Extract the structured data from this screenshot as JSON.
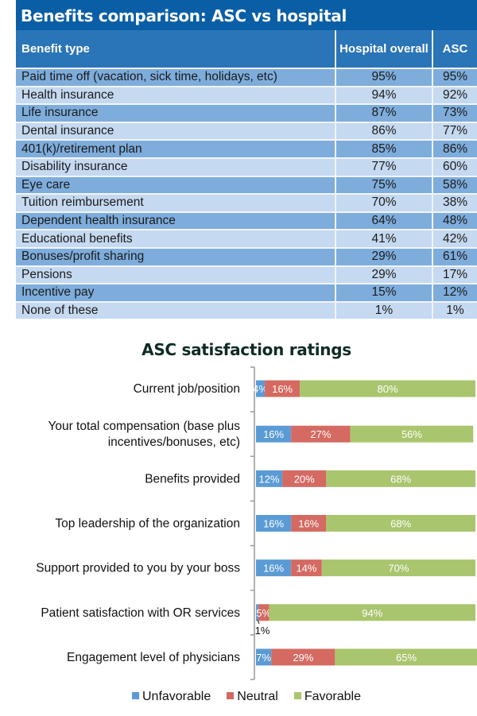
{
  "table": {
    "title": "Benefits comparison: ASC vs hospital",
    "headers": [
      "Benefit type",
      "Hospital overall",
      "ASC"
    ],
    "rows": [
      [
        "Paid time off (vacation, sick time, holidays, etc)",
        "95%",
        "95%"
      ],
      [
        "Health insurance",
        "94%",
        "92%"
      ],
      [
        "Life insurance",
        "87%",
        "73%"
      ],
      [
        "Dental insurance",
        "86%",
        "77%"
      ],
      [
        "401(k)/retirement plan",
        "85%",
        "86%"
      ],
      [
        "Disability insurance",
        "77%",
        "60%"
      ],
      [
        "Eye care",
        "75%",
        "58%"
      ],
      [
        "Tuition reimbursement",
        "70%",
        "38%"
      ],
      [
        "Dependent health insurance",
        "64%",
        "48%"
      ],
      [
        "Educational benefits",
        "41%",
        "42%"
      ],
      [
        "Bonuses/profit sharing",
        "29%",
        "61%"
      ],
      [
        "Pensions",
        "29%",
        "17%"
      ],
      [
        "Incentive pay",
        "15%",
        "12%"
      ],
      [
        "None of these",
        "1%",
        "1%"
      ]
    ],
    "colors": {
      "title": "#0a5ea6",
      "header": "#2a74b8",
      "row_dark": "#7eaddc",
      "row_light": "#c5d9f0"
    }
  },
  "chart_data": {
    "type": "bar",
    "orientation": "horizontal",
    "stacked": "100%",
    "title": "ASC satisfaction ratings",
    "categories": [
      [
        "Current job/position"
      ],
      [
        "Your total compensation (base plus",
        "incentives/bonuses, etc)"
      ],
      [
        "Benefits provided"
      ],
      [
        "Top leadership of the organization"
      ],
      [
        "Support provided to you by your boss"
      ],
      [
        "Patient satisfaction with OR services"
      ],
      [
        "Engagement level of physicians"
      ]
    ],
    "series": [
      {
        "name": "Unfavorable",
        "color": "#5b9bd5",
        "values": [
          4,
          16,
          12,
          16,
          16,
          1,
          7
        ]
      },
      {
        "name": "Neutral",
        "color": "#d46a62",
        "values": [
          16,
          27,
          20,
          16,
          14,
          5,
          29
        ]
      },
      {
        "name": "Favorable",
        "color": "#a9c56d",
        "values": [
          80,
          56,
          68,
          68,
          70,
          94,
          65
        ]
      }
    ],
    "legend": "bottom",
    "grid": false
  }
}
